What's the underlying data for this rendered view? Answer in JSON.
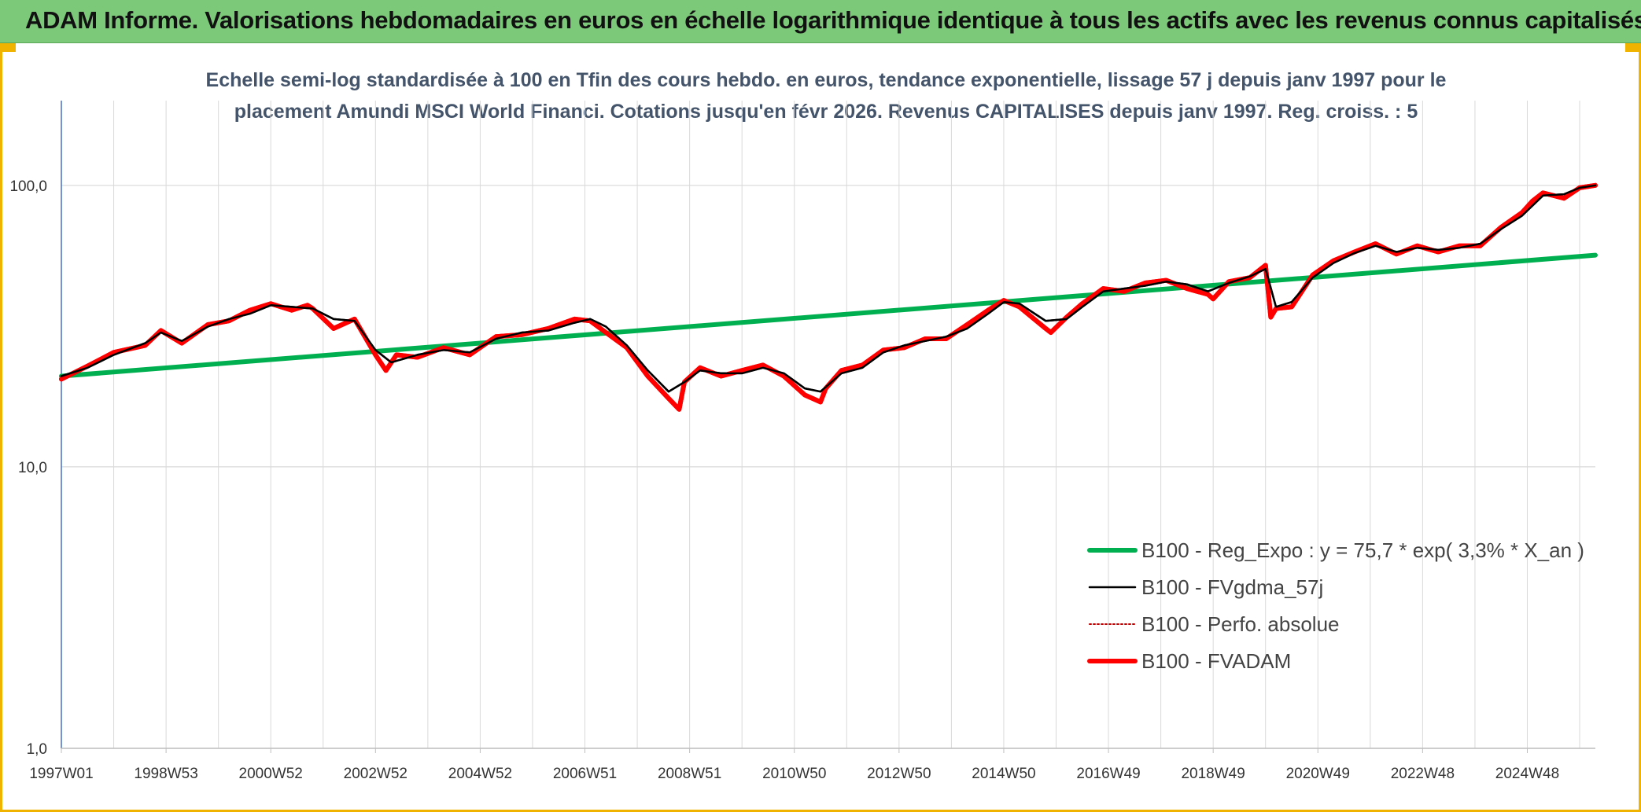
{
  "header": {
    "title": "ADAM Informe. Valorisations hebdomadaires en euros en échelle logarithmique identique à tous les actifs avec les revenus connus capitalisés"
  },
  "chart_data": {
    "type": "line",
    "subtitle_line1": "Echelle semi-log standardisée à 100 en Tfin des cours hebdo. en euros, tendance exponentielle, lissage 57 j depuis janv 1997 pour le",
    "subtitle_line2": "placement Amundi MSCI World Financi. Cotations jusqu'en févr 2026. Revenus CAPITALISES depuis janv 1997. Reg. croiss. : 5",
    "y_scale": "log",
    "ylim": [
      1,
      200
    ],
    "y_ticks": [
      {
        "value": 1,
        "label": "1,0"
      },
      {
        "value": 10,
        "label": "10,0"
      },
      {
        "value": 100,
        "label": "100,0"
      }
    ],
    "xlim": [
      1997.0,
      2026.3
    ],
    "x_ticks": [
      {
        "value": 1997.0,
        "label": "1997W01"
      },
      {
        "value": 1999.0,
        "label": "1998W53"
      },
      {
        "value": 2001.0,
        "label": "2000W52"
      },
      {
        "value": 2003.0,
        "label": "2002W52"
      },
      {
        "value": 2005.0,
        "label": "2004W52"
      },
      {
        "value": 2007.0,
        "label": "2006W51"
      },
      {
        "value": 2009.0,
        "label": "2008W51"
      },
      {
        "value": 2011.0,
        "label": "2010W50"
      },
      {
        "value": 2013.0,
        "label": "2012W50"
      },
      {
        "value": 2015.0,
        "label": "2014W50"
      },
      {
        "value": 2017.0,
        "label": "2016W49"
      },
      {
        "value": 2019.0,
        "label": "2018W49"
      },
      {
        "value": 2021.0,
        "label": "2020W49"
      },
      {
        "value": 2023.0,
        "label": "2022W48"
      },
      {
        "value": 2025.0,
        "label": "2024W48"
      }
    ],
    "grid": true,
    "legend_position": "bottom-right",
    "series": [
      {
        "name": "B100 - Reg_Expo : y = 75,7 * exp( 3,3% *  X_an )",
        "color": "#00b050",
        "style": "solid-thick",
        "x": [
          1997.0,
          2026.3
        ],
        "y": [
          21.0,
          56.5
        ]
      },
      {
        "name": "B100 - FVgdma_57j",
        "color": "#000000",
        "style": "solid-thin",
        "x": [
          1997.0,
          1997.5,
          1998.0,
          1998.6,
          1998.9,
          1999.3,
          1999.8,
          2000.2,
          2000.6,
          2001.0,
          2001.4,
          2001.8,
          2002.2,
          2002.6,
          2003.0,
          2003.3,
          2003.8,
          2004.3,
          2004.8,
          2005.3,
          2005.8,
          2006.3,
          2006.8,
          2007.1,
          2007.4,
          2007.8,
          2008.2,
          2008.6,
          2008.9,
          2009.2,
          2009.6,
          2010.0,
          2010.4,
          2010.8,
          2011.2,
          2011.5,
          2011.9,
          2012.3,
          2012.7,
          2013.1,
          2013.5,
          2013.9,
          2014.3,
          2014.7,
          2015.0,
          2015.3,
          2015.8,
          2016.2,
          2016.5,
          2016.9,
          2017.3,
          2017.7,
          2018.1,
          2018.5,
          2018.9,
          2019.3,
          2019.7,
          2020.0,
          2020.2,
          2020.5,
          2020.9,
          2021.3,
          2021.7,
          2022.1,
          2022.5,
          2022.9,
          2023.3,
          2023.7,
          2024.1,
          2024.5,
          2024.9,
          2025.3,
          2025.7,
          2026.0,
          2026.3
        ],
        "y": [
          21.0,
          22.5,
          25.0,
          27.5,
          30.0,
          28.0,
          31.5,
          33.5,
          35.0,
          37.5,
          37.0,
          36.5,
          33.5,
          33.0,
          26.0,
          23.5,
          25.0,
          26.0,
          25.5,
          28.5,
          30.0,
          30.5,
          32.5,
          33.5,
          31.5,
          27.0,
          22.0,
          18.5,
          20.0,
          22.0,
          21.5,
          21.5,
          22.5,
          21.5,
          19.0,
          18.5,
          21.5,
          22.5,
          25.5,
          27.0,
          28.0,
          29.0,
          31.0,
          35.0,
          38.5,
          38.0,
          33.0,
          33.5,
          37.0,
          42.0,
          43.0,
          44.0,
          45.5,
          44.5,
          42.0,
          45.0,
          47.5,
          50.5,
          37.0,
          38.5,
          47.0,
          53.0,
          57.5,
          61.0,
          58.0,
          60.0,
          59.0,
          60.0,
          62.0,
          70.0,
          78.0,
          92.0,
          93.0,
          98.0,
          100.0
        ]
      },
      {
        "name": "B100 - Perfo. absolue",
        "color": "#c00000",
        "style": "dotted",
        "x": [
          1997.0,
          1997.5,
          1998.0,
          1998.6,
          1998.9,
          1999.3,
          1999.8,
          2000.2,
          2000.6,
          2001.0,
          2001.4,
          2001.7,
          2001.8,
          2002.2,
          2002.6,
          2003.0,
          2003.2,
          2003.4,
          2003.8,
          2004.3,
          2004.8,
          2005.3,
          2005.8,
          2006.3,
          2006.8,
          2007.1,
          2007.4,
          2007.8,
          2008.2,
          2008.6,
          2008.8,
          2008.9,
          2009.2,
          2009.6,
          2010.0,
          2010.4,
          2010.8,
          2011.2,
          2011.5,
          2011.6,
          2011.9,
          2012.3,
          2012.7,
          2013.1,
          2013.5,
          2013.9,
          2014.3,
          2014.7,
          2015.0,
          2015.3,
          2015.8,
          2015.9,
          2016.2,
          2016.5,
          2016.9,
          2017.3,
          2017.7,
          2018.1,
          2018.5,
          2018.9,
          2019.0,
          2019.3,
          2019.7,
          2020.0,
          2020.1,
          2020.2,
          2020.5,
          2020.9,
          2021.3,
          2021.7,
          2022.1,
          2022.5,
          2022.9,
          2023.3,
          2023.7,
          2024.1,
          2024.5,
          2024.9,
          2025.1,
          2025.3,
          2025.7,
          2026.0,
          2026.3
        ],
        "y": [
          20.5,
          22.8,
          25.5,
          27.0,
          30.5,
          27.5,
          32.0,
          33.0,
          36.0,
          38.0,
          36.0,
          37.5,
          36.5,
          31.0,
          33.5,
          25.0,
          22.0,
          25.0,
          24.5,
          26.5,
          25.0,
          29.0,
          29.5,
          31.0,
          33.5,
          33.0,
          30.0,
          26.5,
          21.0,
          17.5,
          16.0,
          20.0,
          22.5,
          21.0,
          22.0,
          23.0,
          21.0,
          18.0,
          17.0,
          19.0,
          22.0,
          23.0,
          26.0,
          26.5,
          28.5,
          28.5,
          32.0,
          36.0,
          39.0,
          37.0,
          31.0,
          30.0,
          34.0,
          38.0,
          43.0,
          42.0,
          45.0,
          46.0,
          43.0,
          41.0,
          39.5,
          45.5,
          47.0,
          52.0,
          34.0,
          36.5,
          37.0,
          48.0,
          54.0,
          58.0,
          62.0,
          57.0,
          61.0,
          58.0,
          61.0,
          61.0,
          71.0,
          80.0,
          88.0,
          94.0,
          90.0,
          98.0,
          100.0
        ]
      },
      {
        "name": "B100 - FVADAM",
        "color": "#ff0000",
        "style": "solid-thick",
        "x": [
          1997.0,
          1997.5,
          1998.0,
          1998.6,
          1998.9,
          1999.3,
          1999.8,
          2000.2,
          2000.6,
          2001.0,
          2001.4,
          2001.7,
          2001.8,
          2002.2,
          2002.6,
          2003.0,
          2003.2,
          2003.4,
          2003.8,
          2004.3,
          2004.8,
          2005.3,
          2005.8,
          2006.3,
          2006.8,
          2007.1,
          2007.4,
          2007.8,
          2008.2,
          2008.6,
          2008.8,
          2008.9,
          2009.2,
          2009.6,
          2010.0,
          2010.4,
          2010.8,
          2011.2,
          2011.5,
          2011.6,
          2011.9,
          2012.3,
          2012.7,
          2013.1,
          2013.5,
          2013.9,
          2014.3,
          2014.7,
          2015.0,
          2015.3,
          2015.8,
          2015.9,
          2016.2,
          2016.5,
          2016.9,
          2017.3,
          2017.7,
          2018.1,
          2018.5,
          2018.9,
          2019.0,
          2019.3,
          2019.7,
          2020.0,
          2020.1,
          2020.2,
          2020.5,
          2020.9,
          2021.3,
          2021.7,
          2022.1,
          2022.5,
          2022.9,
          2023.3,
          2023.7,
          2024.1,
          2024.5,
          2024.9,
          2025.1,
          2025.3,
          2025.7,
          2026.0,
          2026.3
        ],
        "y": [
          20.5,
          22.8,
          25.5,
          27.0,
          30.5,
          27.5,
          32.0,
          33.0,
          36.0,
          38.0,
          36.0,
          37.5,
          36.5,
          31.0,
          33.5,
          25.0,
          22.0,
          25.0,
          24.5,
          26.5,
          25.0,
          29.0,
          29.5,
          31.0,
          33.5,
          33.0,
          30.0,
          26.5,
          21.0,
          17.5,
          16.0,
          20.0,
          22.5,
          21.0,
          22.0,
          23.0,
          21.0,
          18.0,
          17.0,
          19.0,
          22.0,
          23.0,
          26.0,
          26.5,
          28.5,
          28.5,
          32.0,
          36.0,
          39.0,
          37.0,
          31.0,
          30.0,
          34.0,
          38.0,
          43.0,
          42.0,
          45.0,
          46.0,
          43.0,
          41.0,
          39.5,
          45.5,
          47.0,
          52.0,
          34.0,
          36.5,
          37.0,
          48.0,
          54.0,
          58.0,
          62.0,
          57.0,
          61.0,
          58.0,
          61.0,
          61.0,
          71.0,
          80.0,
          88.0,
          94.0,
          90.0,
          98.0,
          100.0
        ]
      }
    ]
  }
}
